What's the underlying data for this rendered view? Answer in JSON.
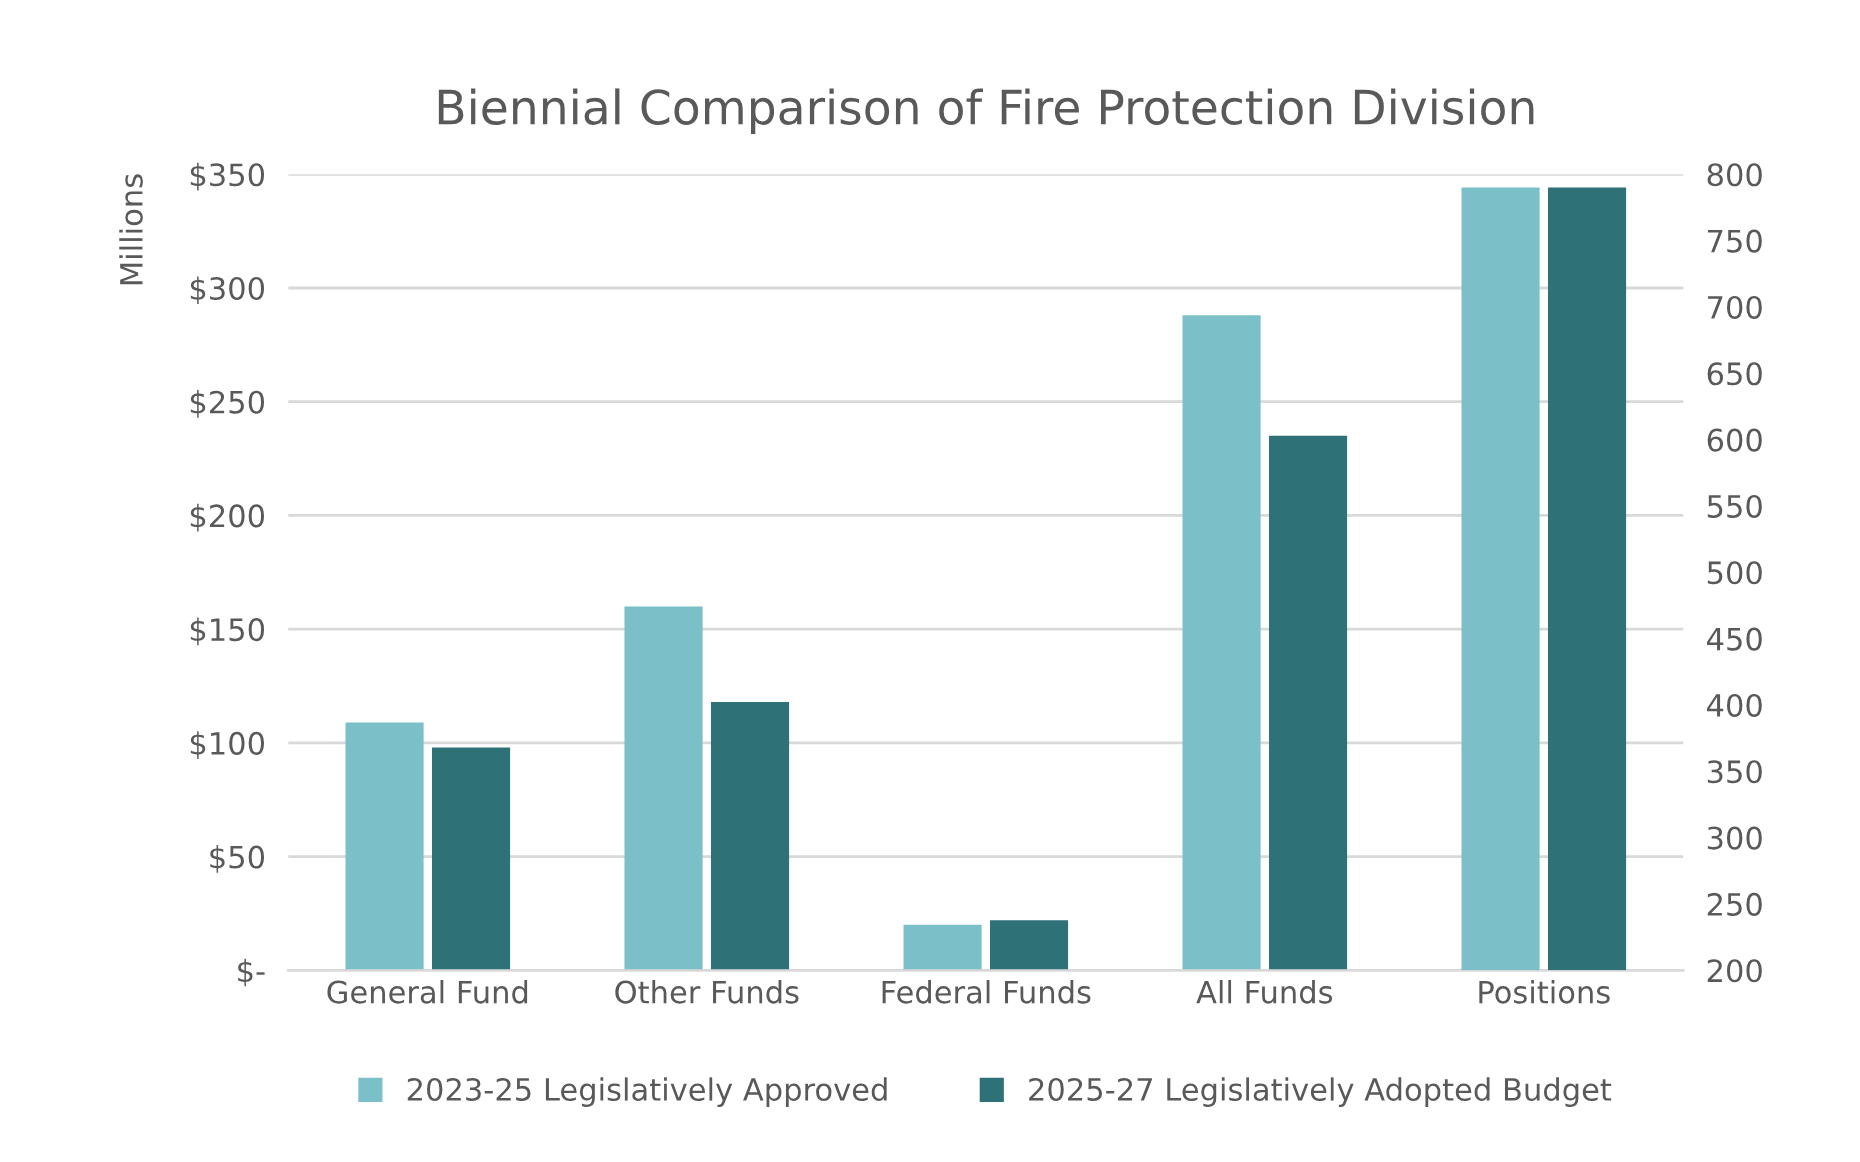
{
  "chart_data": {
    "type": "bar",
    "title": "Biennial Comparison of Fire Protection Division",
    "ylabel": "Millions",
    "categories": [
      "General Fund",
      "Other Funds",
      "Federal Funds",
      "All Funds",
      "Positions"
    ],
    "series": [
      {
        "name": "2023-25 Legislatively Approved",
        "color": "#7bbfc8",
        "values": [
          109,
          160,
          20,
          288,
          null
        ]
      },
      {
        "name": "2025-27 Legislatively Adopted Budget",
        "color": "#2e7278",
        "values": [
          98,
          118,
          22,
          235,
          null
        ]
      },
      {
        "color": "#7bbfc8",
        "axis": "y2",
        "values": [
          null,
          null,
          null,
          null,
          790
        ]
      },
      {
        "color": "#2e7278",
        "axis": "y2",
        "values": [
          null,
          null,
          null,
          null,
          790
        ]
      }
    ],
    "ylim": [
      0,
      350
    ],
    "yticks": [
      {
        "value": 0,
        "label": "$-"
      },
      {
        "value": 50,
        "label": "$50"
      },
      {
        "value": 100,
        "label": "$100"
      },
      {
        "value": 150,
        "label": "$150"
      },
      {
        "value": 200,
        "label": "$200"
      },
      {
        "value": 250,
        "label": "$250"
      },
      {
        "value": 300,
        "label": "$300"
      },
      {
        "value": 350,
        "label": "$350"
      }
    ],
    "y2lim": [
      200,
      800
    ],
    "y2ticks": [
      200,
      250,
      300,
      350,
      400,
      450,
      500,
      550,
      600,
      650,
      700,
      750,
      800
    ],
    "grid": "y",
    "legend": "bottom"
  }
}
